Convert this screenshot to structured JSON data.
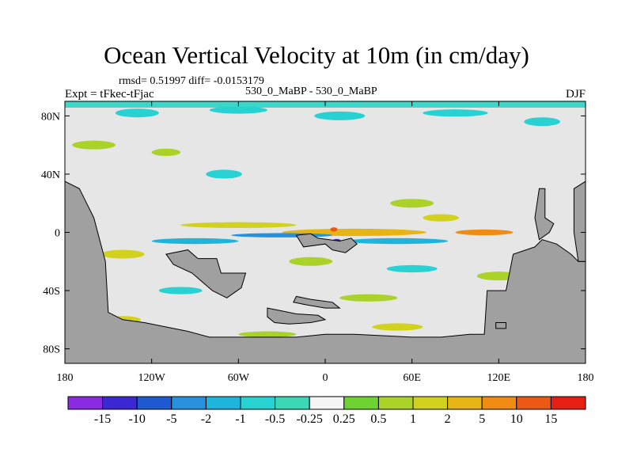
{
  "title": "Ocean Vertical Velocity at 10m (in cm/day)",
  "stats": "rmsd= 0.51997 diff= -0.0153179",
  "experiment": "Expt = tFkec-tFjac",
  "cases": "530_0_MaBP - 530_0_MaBP",
  "season": "DJF",
  "chart_data": {
    "type": "heatmap",
    "title": "Ocean Vertical Velocity at 10m (in cm/day)",
    "projection": "cylindrical equidistant",
    "xlim": [
      -180,
      180
    ],
    "ylim": [
      -90,
      90
    ],
    "x_ticks": [
      {
        "value": -180,
        "label": "180"
      },
      {
        "value": -120,
        "label": "120W"
      },
      {
        "value": -60,
        "label": "60W"
      },
      {
        "value": 0,
        "label": "0"
      },
      {
        "value": 60,
        "label": "60E"
      },
      {
        "value": 120,
        "label": "120E"
      },
      {
        "value": 180,
        "label": "180"
      }
    ],
    "y_ticks": [
      {
        "value": 80,
        "label": "80N"
      },
      {
        "value": 40,
        "label": "40N"
      },
      {
        "value": 0,
        "label": "0"
      },
      {
        "value": -40,
        "label": "40S"
      },
      {
        "value": -80,
        "label": "80S"
      }
    ],
    "land_color": "#a0a0a0",
    "background_color": "#e6e6e6",
    "contour_levels": [
      "-15",
      "-10",
      "-5",
      "-2",
      "-1",
      "-0.5",
      "-0.25",
      "0.25",
      "0.5",
      "1",
      "2",
      "5",
      "10",
      "15"
    ],
    "colorbar_colors": [
      "#8a2be2",
      "#3c28d2",
      "#1e5ad2",
      "#2891dc",
      "#1eb4dc",
      "#28d2d2",
      "#3cd7b4",
      "#f5f5f5",
      "#6ed232",
      "#aad228",
      "#d2d21e",
      "#e6b414",
      "#f08c14",
      "#eb5a14",
      "#e61e14"
    ],
    "land_areas": [
      {
        "name": "Americas",
        "polygon": [
          [
            -180,
            35
          ],
          [
            -170,
            30
          ],
          [
            -160,
            10
          ],
          [
            -152,
            -20
          ],
          [
            -150,
            -55
          ],
          [
            -140,
            -60
          ],
          [
            -125,
            -62
          ],
          [
            -95,
            -68
          ],
          [
            -80,
            -72
          ],
          [
            -20,
            -72
          ],
          [
            0,
            -70
          ],
          [
            20,
            -70
          ],
          [
            60,
            -72
          ],
          [
            80,
            -72
          ],
          [
            100,
            -70
          ],
          [
            110,
            -70
          ],
          [
            112,
            -40
          ],
          [
            125,
            -40
          ],
          [
            130,
            -15
          ],
          [
            145,
            -10
          ],
          [
            150,
            -5
          ],
          [
            160,
            -8
          ],
          [
            170,
            -15
          ],
          [
            175,
            -20
          ],
          [
            180,
            -20
          ],
          [
            180,
            -90
          ],
          [
            -180,
            -90
          ]
        ]
      },
      {
        "name": "South America",
        "polygon": [
          [
            -110,
            -15
          ],
          [
            -95,
            -12
          ],
          [
            -88,
            -18
          ],
          [
            -75,
            -18
          ],
          [
            -72,
            -28
          ],
          [
            -55,
            -28
          ],
          [
            -58,
            -38
          ],
          [
            -68,
            -45
          ],
          [
            -78,
            -40
          ],
          [
            -92,
            -28
          ],
          [
            -105,
            -22
          ]
        ]
      },
      {
        "name": "Africa",
        "polygon": [
          [
            -20,
            -2
          ],
          [
            -10,
            -1
          ],
          [
            -5,
            -4
          ],
          [
            10,
            -6
          ],
          [
            18,
            -4
          ],
          [
            22,
            -8
          ],
          [
            14,
            -14
          ],
          [
            5,
            -12
          ],
          [
            0,
            -8
          ],
          [
            -15,
            -10
          ]
        ]
      },
      {
        "name": "Antarctic Peninsula",
        "polygon": [
          [
            -40,
            -52
          ],
          [
            -30,
            -54
          ],
          [
            -20,
            -56
          ],
          [
            -5,
            -57
          ],
          [
            0,
            -60
          ],
          [
            -10,
            -62
          ],
          [
            -25,
            -63
          ],
          [
            -35,
            -62
          ],
          [
            -40,
            -58
          ]
        ]
      },
      {
        "name": "Island chain south",
        "polygon": [
          [
            -20,
            -44
          ],
          [
            -10,
            -46
          ],
          [
            5,
            -48
          ],
          [
            10,
            -52
          ],
          [
            0,
            -52
          ],
          [
            -12,
            -50
          ],
          [
            -22,
            -48
          ]
        ]
      },
      {
        "name": "Western Pacific ridge",
        "polygon": [
          [
            148,
            30
          ],
          [
            152,
            30
          ],
          [
            152,
            10
          ],
          [
            158,
            6
          ],
          [
            155,
            0
          ],
          [
            148,
            -5
          ],
          [
            145,
            10
          ]
        ]
      },
      {
        "name": "Eastern landmass",
        "polygon": [
          [
            172,
            30
          ],
          [
            180,
            35
          ],
          [
            180,
            -20
          ],
          [
            175,
            -20
          ],
          [
            172,
            0
          ]
        ]
      },
      {
        "name": "Small island",
        "polygon": [
          [
            118,
            -62
          ],
          [
            125,
            -62
          ],
          [
            125,
            -66
          ],
          [
            118,
            -66
          ]
        ]
      }
    ],
    "anomaly_patches": [
      {
        "band": "arctic",
        "lat": 82,
        "lon": -130,
        "w": 30,
        "h": 6,
        "level": "-0.5"
      },
      {
        "band": "arctic",
        "lat": 84,
        "lon": -60,
        "w": 40,
        "h": 5,
        "level": "-0.5"
      },
      {
        "band": "arctic",
        "lat": 80,
        "lon": 10,
        "w": 35,
        "h": 6,
        "level": "-0.5"
      },
      {
        "band": "arctic",
        "lat": 82,
        "lon": 90,
        "w": 45,
        "h": 5,
        "level": "-0.5"
      },
      {
        "band": "arctic",
        "lat": 76,
        "lon": 150,
        "w": 25,
        "h": 6,
        "level": "-0.5"
      },
      {
        "band": "north",
        "lat": 60,
        "lon": -160,
        "w": 30,
        "h": 6,
        "level": "0.5"
      },
      {
        "band": "north",
        "lat": 55,
        "lon": -110,
        "w": 20,
        "h": 5,
        "level": "0.5"
      },
      {
        "band": "north",
        "lat": 40,
        "lon": -70,
        "w": 25,
        "h": 6,
        "level": "-0.5"
      },
      {
        "band": "north",
        "lat": 20,
        "lon": 60,
        "w": 30,
        "h": 6,
        "level": "0.5"
      },
      {
        "band": "north",
        "lat": 10,
        "lon": 80,
        "w": 25,
        "h": 5,
        "level": "1"
      },
      {
        "band": "equator",
        "lat": 5,
        "lon": -60,
        "w": 80,
        "h": 4,
        "level": "1"
      },
      {
        "band": "equator",
        "lat": 0,
        "lon": 20,
        "w": 100,
        "h": 5,
        "level": "2"
      },
      {
        "band": "equator",
        "lat": 0,
        "lon": 110,
        "w": 40,
        "h": 4,
        "level": "5"
      },
      {
        "band": "equator",
        "lat": -2,
        "lon": -30,
        "w": 70,
        "h": 3,
        "level": "-2"
      },
      {
        "band": "equator",
        "lat": -6,
        "lon": -90,
        "w": 60,
        "h": 4,
        "level": "-1"
      },
      {
        "band": "equator",
        "lat": -6,
        "lon": 50,
        "w": 70,
        "h": 4,
        "level": "-1"
      },
      {
        "band": "equator",
        "lat": -6,
        "lon": 8,
        "w": 6,
        "h": 3,
        "level": "-10"
      },
      {
        "band": "equator",
        "lat": 2,
        "lon": 6,
        "w": 5,
        "h": 3,
        "level": "10"
      },
      {
        "band": "south",
        "lat": -15,
        "lon": -140,
        "w": 30,
        "h": 6,
        "level": "1"
      },
      {
        "band": "south",
        "lat": -20,
        "lon": -10,
        "w": 30,
        "h": 6,
        "level": "0.5"
      },
      {
        "band": "south",
        "lat": -25,
        "lon": 60,
        "w": 35,
        "h": 5,
        "level": "-0.5"
      },
      {
        "band": "south",
        "lat": -30,
        "lon": 120,
        "w": 30,
        "h": 6,
        "level": "0.5"
      },
      {
        "band": "south",
        "lat": -40,
        "lon": -100,
        "w": 30,
        "h": 5,
        "level": "-0.5"
      },
      {
        "band": "south",
        "lat": -45,
        "lon": 30,
        "w": 40,
        "h": 5,
        "level": "0.5"
      },
      {
        "band": "south",
        "lat": -50,
        "lon": 140,
        "w": 30,
        "h": 6,
        "level": "-0.5"
      },
      {
        "band": "south",
        "lat": -60,
        "lon": -140,
        "w": 25,
        "h": 5,
        "level": "1"
      },
      {
        "band": "south",
        "lat": -65,
        "lon": 50,
        "w": 35,
        "h": 5,
        "level": "1"
      },
      {
        "band": "south",
        "lat": -70,
        "lon": -40,
        "w": 40,
        "h": 4,
        "level": "0.5"
      }
    ]
  }
}
